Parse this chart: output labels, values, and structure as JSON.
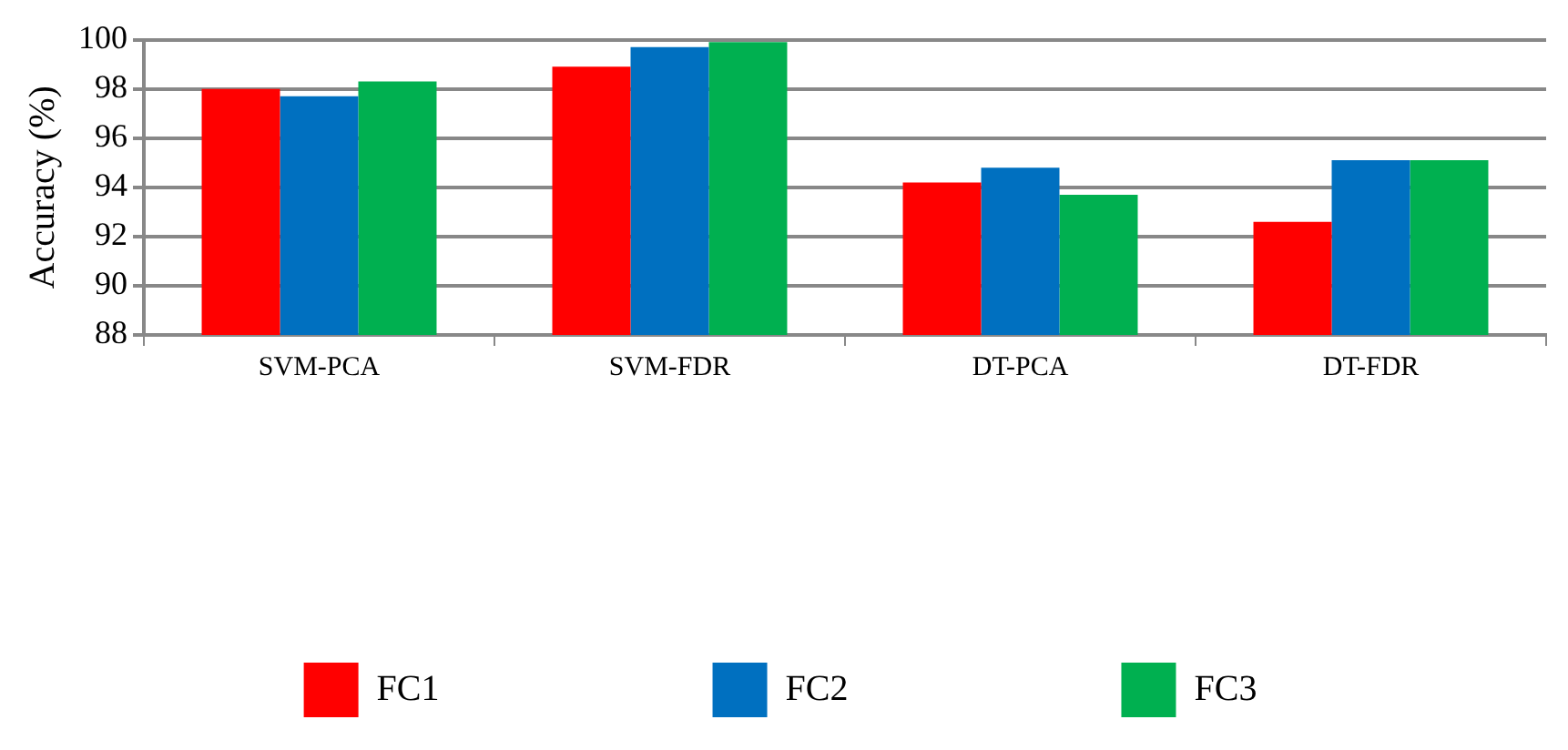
{
  "chart_data": {
    "type": "bar",
    "ylabel": "Accuracy (%)",
    "categories": [
      "SVM-PCA",
      "SVM-FDR",
      "DT-PCA",
      "DT-FDR"
    ],
    "series": [
      {
        "name": "FC1",
        "color": "#ff0000",
        "values": [
          98.0,
          98.9,
          94.2,
          92.6
        ]
      },
      {
        "name": "FC2",
        "color": "#0070c0",
        "values": [
          97.7,
          99.7,
          94.8,
          95.1
        ]
      },
      {
        "name": "FC3",
        "color": "#00b050",
        "values": [
          98.3,
          99.9,
          93.7,
          95.1
        ]
      }
    ],
    "ylim": [
      88,
      100
    ],
    "yticks": [
      88,
      90,
      92,
      94,
      96,
      98,
      100
    ],
    "grid": "y",
    "legend": "bottom"
  }
}
